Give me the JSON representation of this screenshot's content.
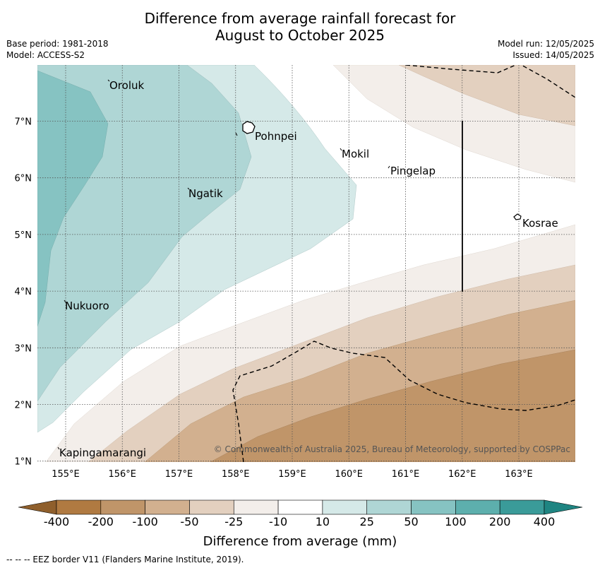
{
  "title_line1": "Difference from average rainfall forecast for",
  "title_line2": "August to October 2025",
  "meta": {
    "base_period": "Base period: 1981-2018",
    "model": "Model: ACCESS-S2",
    "model_run": "Model run: 12/05/2025",
    "issued": "Issued: 14/05/2025"
  },
  "map": {
    "lon_ticks": [
      "155°E",
      "156°E",
      "157°E",
      "158°E",
      "159°E",
      "160°E",
      "161°E",
      "162°E",
      "163°E"
    ],
    "lat_ticks": [
      "7°N",
      "6°N",
      "5°N",
      "4°N",
      "3°N",
      "2°N",
      "1°N"
    ],
    "places": [
      "Oroluk",
      "Pohnpei",
      "Mokil",
      "Pingelap",
      "Ngatik",
      "Kosrae",
      "Nukuoro",
      "Kapingamarangi"
    ],
    "copyright": "© Commonwealth of Australia 2025, Bureau of Meteorology, supported by COSPPac"
  },
  "colorbar": {
    "title": "Difference from average (mm)",
    "ticks": [
      "-400",
      "-200",
      "-100",
      "-50",
      "-25",
      "-10",
      "10",
      "25",
      "50",
      "100",
      "200",
      "400"
    ],
    "colors": [
      "#b07a41",
      "#c09569",
      "#d2b08f",
      "#e3d0bf",
      "#f3eeea",
      "#ffffff",
      "#d5e9e8",
      "#afd6d5",
      "#86c3c2",
      "#5dafad",
      "#3a9b99"
    ]
  },
  "footer": "--  --  -- EEZ border V11 (Flanders Marine Institute, 2019)."
}
